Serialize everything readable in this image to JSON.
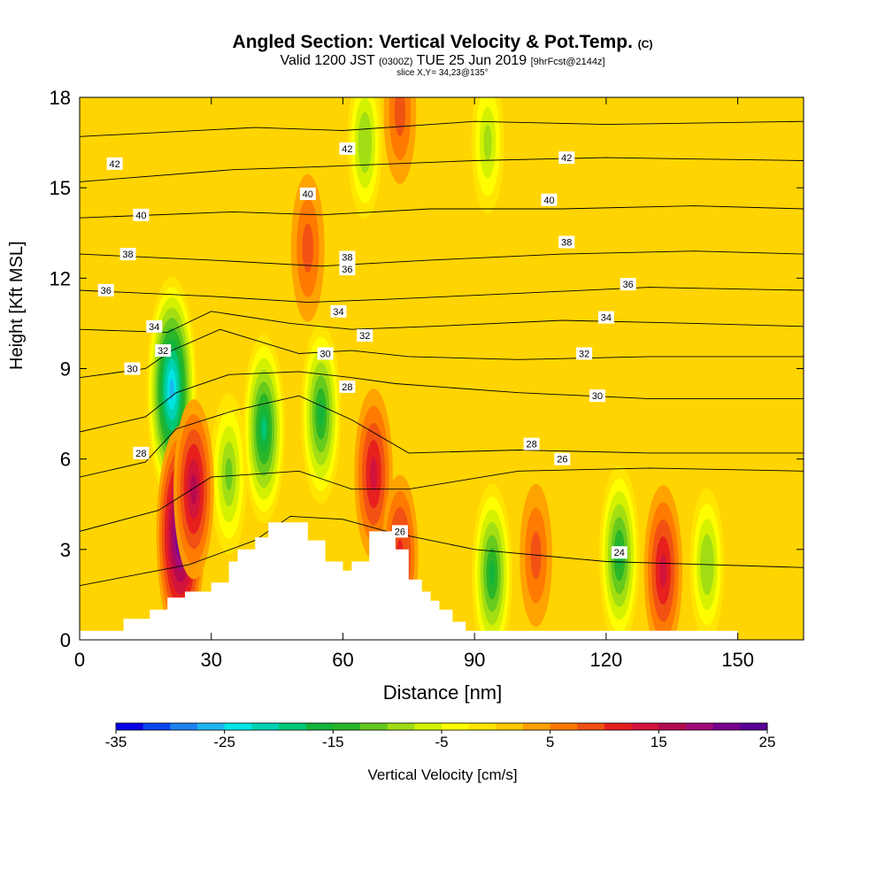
{
  "chart_data": {
    "type": "heatmap",
    "title": "Angled Section: Vertical Velocity & Pot.Temp.",
    "title_suffix": "(C)",
    "subtitle_valid": "Valid 1200 JST",
    "subtitle_utc": "(0300Z)",
    "subtitle_date": "TUE 25 Jun 2019",
    "subtitle_fcst": "[9hrFcst@2144z]",
    "slice_label": "slice X,Y= 34,23@135°",
    "xlabel": "Distance [nm]",
    "ylabel": "Height [Kft MSL]",
    "xlim": [
      0,
      165
    ],
    "ylim": [
      0,
      18
    ],
    "x_ticks": [
      0,
      30,
      60,
      90,
      120,
      150
    ],
    "y_ticks": [
      0,
      3,
      6,
      9,
      12,
      15,
      18
    ],
    "colorbar": {
      "label": "Vertical Velocity [cm/s]",
      "range": [
        -35,
        25
      ],
      "tick_labels": [
        -35,
        -25,
        -15,
        -5,
        5,
        15,
        25
      ],
      "colors": [
        "#0a00e6",
        "#0a46f0",
        "#1e82f0",
        "#1eb4f0",
        "#00e6e6",
        "#00d2b4",
        "#00c878",
        "#14b43c",
        "#28b428",
        "#64c81e",
        "#a0dc14",
        "#d2f000",
        "#ffff00",
        "#ffe600",
        "#ffc800",
        "#ffa000",
        "#ff7800",
        "#f05014",
        "#e61e1e",
        "#d2143c",
        "#b40a50",
        "#a00a78",
        "#78008c",
        "#5a0096"
      ]
    },
    "potential_temperature_contour_labels": [
      24,
      26,
      28,
      30,
      32,
      34,
      36,
      38,
      40,
      42
    ],
    "upward_maxima": [
      {
        "x": 23,
        "y": 3.5,
        "w": 24
      },
      {
        "x": 26,
        "y": 5.0,
        "w": 16
      },
      {
        "x": 67,
        "y": 5.5,
        "w": 14
      },
      {
        "x": 73,
        "y": 2.8,
        "w": 12
      },
      {
        "x": 133,
        "y": 2.3,
        "w": 14
      },
      {
        "x": 52,
        "y": 13.0,
        "w": 9
      },
      {
        "x": 73,
        "y": 17.5,
        "w": 8
      },
      {
        "x": 104,
        "y": 2.8,
        "w": 8
      }
    ],
    "downward_maxima": [
      {
        "x": 21,
        "y": 8.3,
        "w": -26
      },
      {
        "x": 55,
        "y": 7.5,
        "w": -16
      },
      {
        "x": 42,
        "y": 7.0,
        "w": -18
      },
      {
        "x": 94,
        "y": 2.2,
        "w": -16
      },
      {
        "x": 123,
        "y": 2.8,
        "w": -16
      },
      {
        "x": 34,
        "y": 5.5,
        "w": -12
      },
      {
        "x": 143,
        "y": 2.5,
        "w": -10
      },
      {
        "x": 65,
        "y": 16.5,
        "w": -10
      },
      {
        "x": 93,
        "y": 16.5,
        "w": -8
      }
    ]
  }
}
